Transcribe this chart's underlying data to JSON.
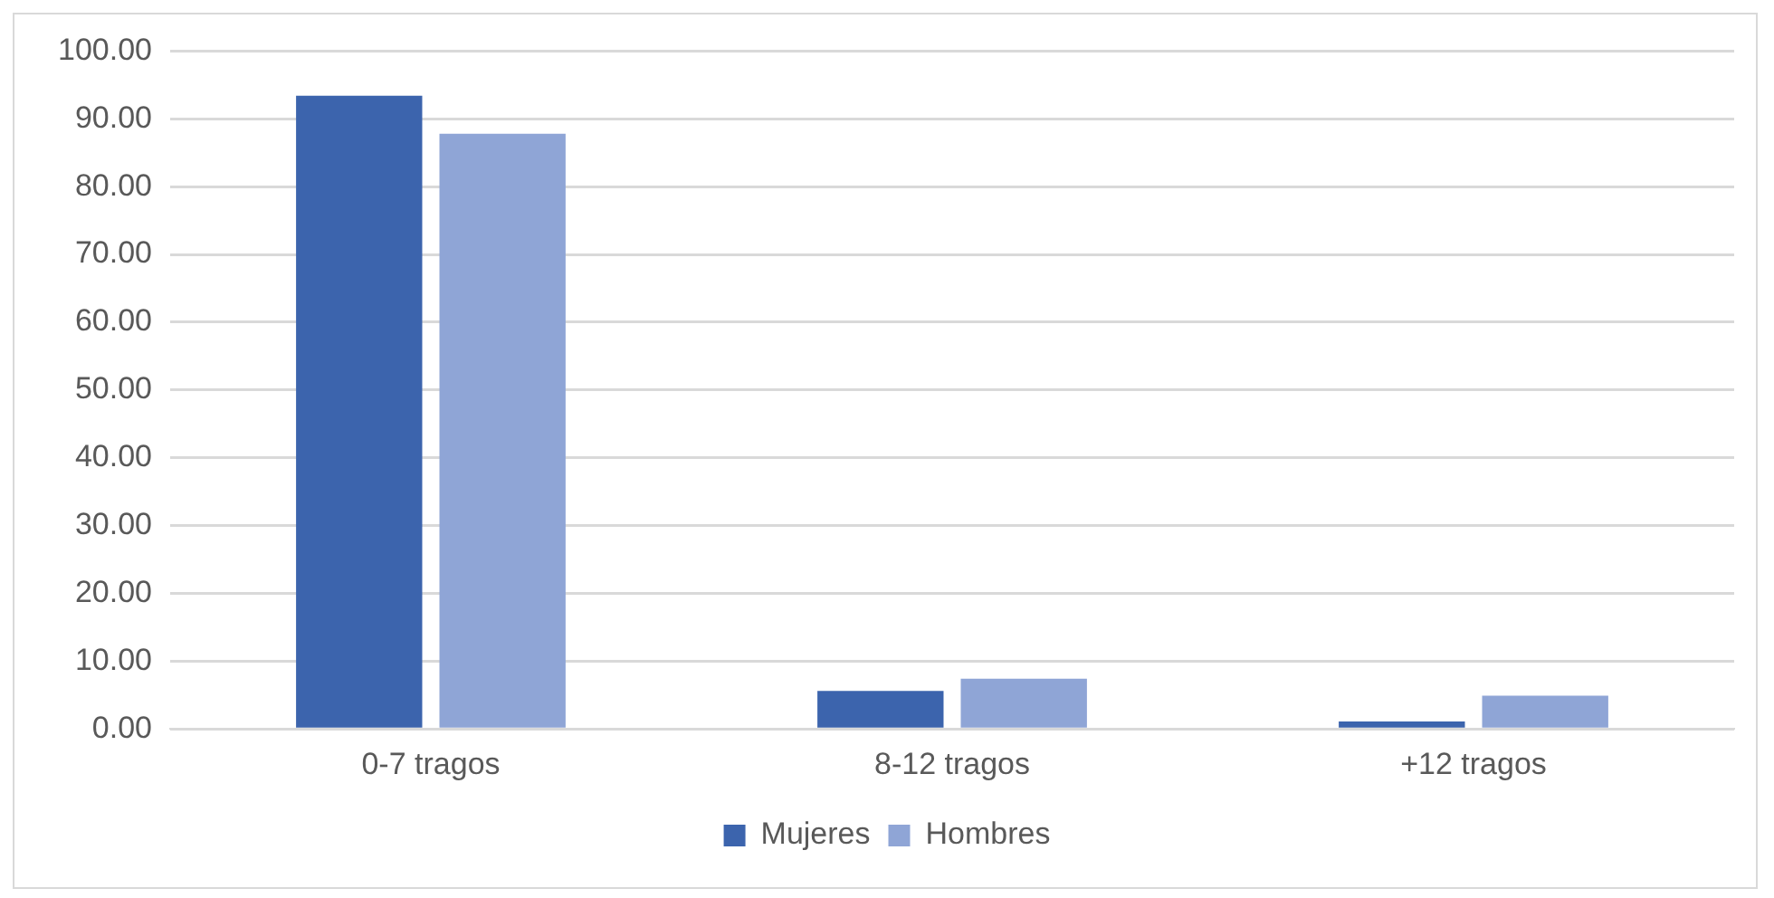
{
  "chart_data": {
    "type": "bar",
    "categories": [
      "0-7 tragos",
      "8-12 tragos",
      "+12 tragos"
    ],
    "series": [
      {
        "name": "Mujeres",
        "color": "#3c64ad",
        "values": [
          93.4,
          5.6,
          1.1
        ]
      },
      {
        "name": "Hombres",
        "color": "#8fa5d6",
        "values": [
          87.8,
          7.4,
          4.9
        ]
      }
    ],
    "ylim": [
      0,
      100
    ],
    "yticks": [
      {
        "value": 0,
        "label": "0.00"
      },
      {
        "value": 10,
        "label": "10.00"
      },
      {
        "value": 20,
        "label": "20.00"
      },
      {
        "value": 30,
        "label": "30.00"
      },
      {
        "value": 40,
        "label": "40.00"
      },
      {
        "value": 50,
        "label": "50.00"
      },
      {
        "value": 60,
        "label": "60.00"
      },
      {
        "value": 70,
        "label": "70.00"
      },
      {
        "value": 80,
        "label": "80.00"
      },
      {
        "value": 90,
        "label": "90.00"
      },
      {
        "value": 100,
        "label": "100.00"
      }
    ],
    "grid": "y",
    "legend": "bottom"
  }
}
